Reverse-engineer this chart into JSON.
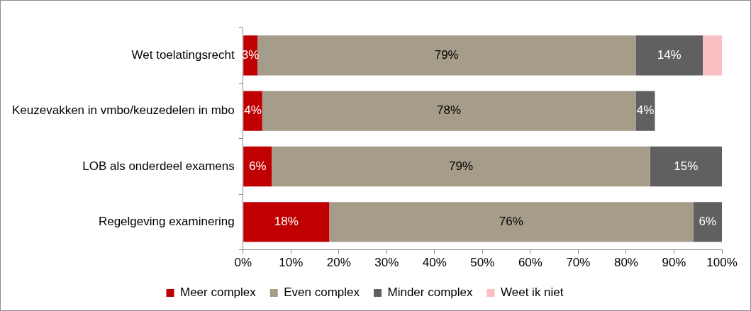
{
  "chart_data": {
    "type": "bar",
    "orientation": "horizontal",
    "stacked": true,
    "categories": [
      "Wet toelatingsrecht",
      "Keuzevakken in vmbo/keuzedelen in mbo",
      "LOB als onderdeel examens",
      "Regelgeving examinering"
    ],
    "series": [
      {
        "name": "Meer complex",
        "color": "#c00000",
        "values": [
          3,
          4,
          6,
          18
        ],
        "value_labels": [
          "3%",
          "4%",
          "6%",
          "18%"
        ]
      },
      {
        "name": "Even complex",
        "color": "#a59c89",
        "values": [
          79,
          78,
          79,
          76
        ],
        "value_labels": [
          "79%",
          "78%",
          "79%",
          "76%"
        ]
      },
      {
        "name": "Minder complex",
        "color": "#606060",
        "values": [
          14,
          4,
          15,
          6
        ],
        "value_labels": [
          "14%",
          "4%",
          "15%",
          "6%"
        ]
      },
      {
        "name": "Weet ik niet",
        "color": "#f9bfc2",
        "values": [
          4,
          null,
          null,
          null
        ],
        "value_labels": [
          null,
          null,
          null,
          null
        ]
      }
    ],
    "xlim": [
      0,
      100
    ],
    "xticks": [
      {
        "value": 0,
        "label": "0%"
      },
      {
        "value": 10,
        "label": "10%"
      },
      {
        "value": 20,
        "label": "20%"
      },
      {
        "value": 30,
        "label": "30%"
      },
      {
        "value": 40,
        "label": "40%"
      },
      {
        "value": 50,
        "label": "50%"
      },
      {
        "value": 60,
        "label": "60%"
      },
      {
        "value": 70,
        "label": "70%"
      },
      {
        "value": 80,
        "label": "80%"
      },
      {
        "value": 90,
        "label": "90%"
      },
      {
        "value": 100,
        "label": "100%"
      }
    ],
    "grid": false,
    "legend": "bottom"
  }
}
